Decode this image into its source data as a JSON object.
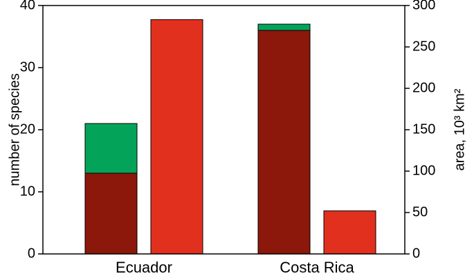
{
  "chart_data": {
    "type": "bar",
    "categories": [
      "Ecuador",
      "Costa Rica"
    ],
    "ylabel": "number of species",
    "y2label": "area, 10³ km²",
    "ylim": [
      0,
      40
    ],
    "yticks": [
      0,
      10,
      20,
      30,
      40
    ],
    "y2lim": [
      0,
      300
    ],
    "y2ticks": [
      0,
      50,
      100,
      150,
      200,
      250,
      300
    ],
    "stacked": true,
    "series": [
      {
        "color": "#8c170b",
        "values": [
          13,
          36
        ]
      },
      {
        "color": "#03a45a",
        "values": [
          8,
          1
        ]
      },
      {
        "color": "#e2301f",
        "values": [
          283,
          52
        ],
        "axis": "y2"
      }
    ]
  }
}
